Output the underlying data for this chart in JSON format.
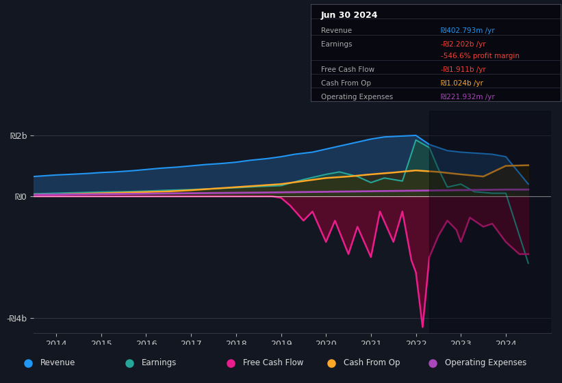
{
  "bg_color": "#131722",
  "plot_bg": "#131722",
  "title_box_text": "Jun 30 2024",
  "info_rows": [
    {
      "label": "Revenue",
      "value": "₪402.793m /yr",
      "value_color": "#2196f3"
    },
    {
      "label": "Earnings",
      "value": "-₪2.202b /yr",
      "value_color": "#f44336"
    },
    {
      "label": "",
      "value": "-546.6% profit margin",
      "value_color": "#f44336"
    },
    {
      "label": "Free Cash Flow",
      "value": "-₪1.911b /yr",
      "value_color": "#f44336"
    },
    {
      "label": "Cash From Op",
      "value": "₪1.024b /yr",
      "value_color": "#ffa726"
    },
    {
      "label": "Operating Expenses",
      "value": "₪221.932m /yr",
      "value_color": "#ab47bc"
    }
  ],
  "yticks_labels": [
    "₪2b",
    "₪0",
    "-₪4b"
  ],
  "yticks_values": [
    2000000000,
    0,
    -4000000000
  ],
  "xticks": [
    2014,
    2015,
    2016,
    2017,
    2018,
    2019,
    2020,
    2021,
    2022,
    2023,
    2024
  ],
  "ylim": [
    -4500000000,
    2800000000
  ],
  "xlim": [
    2013.5,
    2025.0
  ],
  "legend": [
    {
      "label": "Revenue",
      "color": "#2196f3"
    },
    {
      "label": "Earnings",
      "color": "#26a69a"
    },
    {
      "label": "Free Cash Flow",
      "color": "#e91e8c"
    },
    {
      "label": "Cash From Op",
      "color": "#ffa726"
    },
    {
      "label": "Operating Expenses",
      "color": "#ab47bc"
    }
  ],
  "revenue_x": [
    2013.5,
    2014.0,
    2014.3,
    2014.7,
    2015.0,
    2015.3,
    2015.7,
    2016.0,
    2016.3,
    2016.7,
    2017.0,
    2017.3,
    2017.7,
    2018.0,
    2018.3,
    2018.7,
    2019.0,
    2019.3,
    2019.7,
    2020.0,
    2020.3,
    2020.7,
    2021.0,
    2021.3,
    2021.7,
    2022.0,
    2022.3,
    2022.7,
    2023.0,
    2023.3,
    2023.7,
    2024.0,
    2024.5
  ],
  "revenue_y": [
    650000000.0,
    700000000.0,
    720000000.0,
    750000000.0,
    780000000.0,
    800000000.0,
    840000000.0,
    880000000.0,
    920000000.0,
    960000000.0,
    1000000000.0,
    1040000000.0,
    1080000000.0,
    1120000000.0,
    1180000000.0,
    1240000000.0,
    1300000000.0,
    1380000000.0,
    1450000000.0,
    1550000000.0,
    1650000000.0,
    1780000000.0,
    1880000000.0,
    1950000000.0,
    1980000000.0,
    2000000000.0,
    1700000000.0,
    1500000000.0,
    1450000000.0,
    1420000000.0,
    1380000000.0,
    1300000000.0,
    400000000.0
  ],
  "revenue_color": "#2196f3",
  "revenue_fill": "#1a3a5c",
  "earnings_x": [
    2013.5,
    2014.0,
    2014.5,
    2015.0,
    2015.5,
    2016.0,
    2016.5,
    2017.0,
    2017.5,
    2018.0,
    2018.5,
    2019.0,
    2019.5,
    2020.0,
    2020.3,
    2020.7,
    2021.0,
    2021.3,
    2021.7,
    2022.0,
    2022.3,
    2022.5,
    2022.7,
    2023.0,
    2023.3,
    2023.7,
    2024.0,
    2024.5
  ],
  "earnings_y": [
    80000000.0,
    100000000.0,
    120000000.0,
    140000000.0,
    150000000.0,
    170000000.0,
    200000000.0,
    220000000.0,
    250000000.0,
    280000000.0,
    320000000.0,
    350000000.0,
    550000000.0,
    720000000.0,
    800000000.0,
    650000000.0,
    450000000.0,
    600000000.0,
    500000000.0,
    1850000000.0,
    1600000000.0,
    900000000.0,
    300000000.0,
    400000000.0,
    150000000.0,
    100000000.0,
    100000000.0,
    -2200000000.0
  ],
  "earnings_color": "#26a69a",
  "earnings_fill": "#1a4a44",
  "fcf_x": [
    2013.5,
    2018.8,
    2019.0,
    2019.2,
    2019.5,
    2019.7,
    2020.0,
    2020.2,
    2020.5,
    2020.7,
    2021.0,
    2021.2,
    2021.5,
    2021.7,
    2021.9,
    2022.0,
    2022.15,
    2022.3,
    2022.5,
    2022.7,
    2022.9,
    2023.0,
    2023.2,
    2023.5,
    2023.7,
    2024.0,
    2024.3,
    2024.5
  ],
  "fcf_y": [
    0,
    0,
    -50000000.0,
    -300000000.0,
    -800000000.0,
    -500000000.0,
    -1500000000.0,
    -800000000.0,
    -1900000000.0,
    -1000000000.0,
    -2000000000.0,
    -500000000.0,
    -1500000000.0,
    -500000000.0,
    -2100000000.0,
    -2500000000.0,
    -4300000000.0,
    -2000000000.0,
    -1300000000.0,
    -800000000.0,
    -1100000000.0,
    -1500000000.0,
    -700000000.0,
    -1000000000.0,
    -900000000.0,
    -1500000000.0,
    -1900000000.0,
    -1900000000.0
  ],
  "fcf_color": "#e91e8c",
  "fcf_fill": "#5c0a2a",
  "cop_x": [
    2013.5,
    2014.0,
    2014.5,
    2015.0,
    2015.5,
    2016.0,
    2016.5,
    2017.0,
    2017.5,
    2018.0,
    2018.5,
    2019.0,
    2019.5,
    2020.0,
    2020.5,
    2021.0,
    2021.5,
    2022.0,
    2022.5,
    2023.0,
    2023.5,
    2024.0,
    2024.5
  ],
  "cop_y": [
    50000000.0,
    60000000.0,
    80000000.0,
    100000000.0,
    120000000.0,
    140000000.0,
    160000000.0,
    200000000.0,
    250000000.0,
    300000000.0,
    350000000.0,
    400000000.0,
    500000000.0,
    600000000.0,
    650000000.0,
    720000000.0,
    780000000.0,
    850000000.0,
    800000000.0,
    720000000.0,
    650000000.0,
    1000000000.0,
    1020000000.0
  ],
  "cop_color": "#ffa726",
  "cop_fill": "#3a2a00",
  "opex_x": [
    2013.5,
    2018.5,
    2019.0,
    2024.0,
    2024.5
  ],
  "opex_y": [
    50000000.0,
    120000000.0,
    130000000.0,
    220000000.0,
    220000000.0
  ],
  "opex_color": "#ab47bc"
}
